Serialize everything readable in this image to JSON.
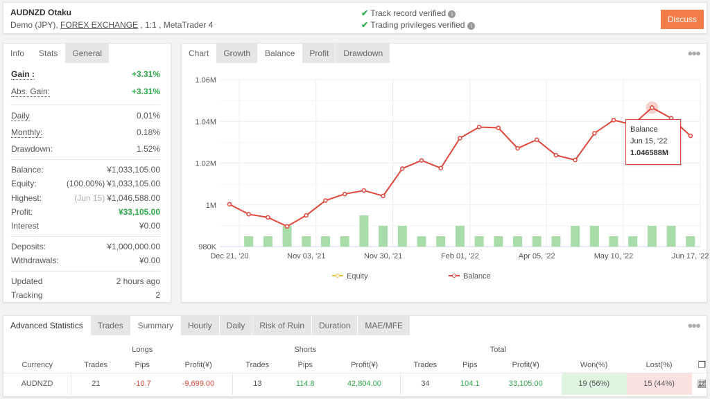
{
  "header": {
    "title": "AUDNZD Otaku",
    "account_prefix": "Demo (JPY),",
    "broker": "FOREX EXCHANGE",
    "account_suffix": ", 1:1 , MetaTrader 4",
    "track_record": "Track record verified",
    "trading_privileges": "Trading privileges verified",
    "discuss": "Discuss",
    "accent": "#f47c48"
  },
  "stats_panel": {
    "tabs": [
      "Info",
      "Stats",
      "General"
    ],
    "active_tab": "Stats",
    "rows": [
      {
        "label": "Gain :",
        "value": "+3.31%",
        "cls": "green",
        "bold": true,
        "dotted": true
      },
      {
        "label": "Abs. Gain:",
        "value": "+3.31%",
        "cls": "green",
        "dotted": true
      },
      {
        "label": "Daily",
        "value": "0.01%",
        "dotted": true
      },
      {
        "label": "Monthly:",
        "value": "0.18%",
        "dotted": true
      },
      {
        "label": "Drawdown:",
        "value": "1.52%"
      },
      {
        "label": "Balance:",
        "value": "¥1,033,105.00"
      },
      {
        "label": "Equity:",
        "prefix": "(100.00%)",
        "value": "¥1,033,105.00"
      },
      {
        "label": "Highest:",
        "prefix": "(Jun 15)",
        "value": "¥1,046,588.00",
        "prefix_muted": true
      },
      {
        "label": "Profit:",
        "value": "¥33,105.00",
        "cls": "green"
      },
      {
        "label": "Interest",
        "value": "¥0.00"
      },
      {
        "label": "Deposits:",
        "value": "¥1,000,000.00"
      },
      {
        "label": "Withdrawals:",
        "value": "¥0.00"
      },
      {
        "label": "Updated",
        "value": "2 hours ago"
      },
      {
        "label": "Tracking",
        "value": "2"
      }
    ]
  },
  "chart_panel": {
    "tabs": [
      "Chart",
      "Growth",
      "Balance",
      "Profit",
      "Drawdown"
    ],
    "active_tab": "Balance"
  },
  "chart_data": {
    "type": "line",
    "y_ticks": [
      "1.06M",
      "1.04M",
      "1.02M",
      "1M",
      "980K"
    ],
    "ylim": [
      980000,
      1060000
    ],
    "x_tick_labels": [
      "Dec 21, '20",
      "Nov 03, '21",
      "Nov 30, '21",
      "Feb 01, '22",
      "Apr 05, '22",
      "May 10, '22",
      "Jun 17, '22"
    ],
    "grid": true,
    "legend_position": "bottom",
    "series": [
      {
        "name": "Equity",
        "color": "#f0c040",
        "values": []
      },
      {
        "name": "Balance",
        "color": "#e0463a",
        "values": [
          1000300,
          995500,
          994000,
          989700,
          995000,
          1002100,
          1005200,
          1006900,
          1004300,
          1017400,
          1021300,
          1017600,
          1032000,
          1037300,
          1036900,
          1027100,
          1031200,
          1023800,
          1021500,
          1034300,
          1040600,
          1038400,
          1046588,
          1041500,
          1033105
        ]
      }
    ],
    "bars": {
      "color": "#a8dca8",
      "values": [
        1,
        1,
        2,
        1,
        1,
        1,
        3,
        2,
        2,
        1,
        1,
        2,
        1,
        1,
        1,
        1,
        1,
        2,
        2,
        1,
        1,
        2,
        2,
        1
      ]
    },
    "tooltip": {
      "series": "Balance",
      "date": "Jun 15, '22",
      "value": "1.046588M"
    }
  },
  "advanced": {
    "tabs": [
      "Advanced Statistics",
      "Trades",
      "Summary",
      "Hourly",
      "Daily",
      "Risk of Ruin",
      "Duration",
      "MAE/MFE"
    ],
    "active_tab": "Summary",
    "groups": [
      "Longs",
      "Shorts",
      "Total"
    ],
    "headers": [
      "Currency",
      "Trades",
      "Pips",
      "Profit(¥)",
      "Trades",
      "Pips",
      "Profit(¥)",
      "Trades",
      "Pips",
      "Profit(¥)",
      "Won(%)",
      "Lost(%)"
    ],
    "rows": [
      [
        "AUDNZD",
        "21",
        "-10.7",
        "-9,699.00",
        "13",
        "114.8",
        "42,804.00",
        "34",
        "104.1",
        "33,105.00",
        "19 (56%)",
        "15 (44%)"
      ]
    ]
  }
}
